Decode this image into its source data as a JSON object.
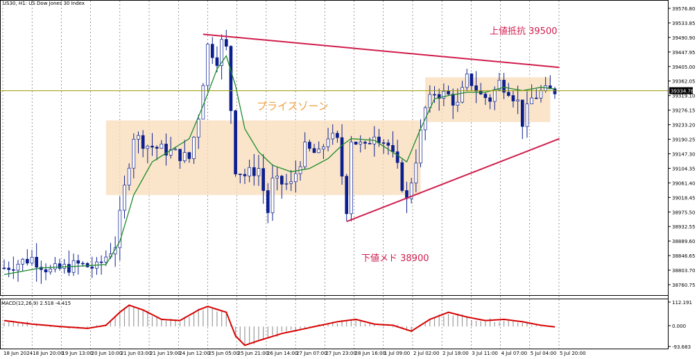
{
  "header": {
    "symbol_title": "US30, H1:  US Dow Jones 30 Index"
  },
  "colors": {
    "candle": "#0b1f8f",
    "ma": "#1e8a2a",
    "trendline": "#d01c4c",
    "zone": "#f8dcb8",
    "current_price_line": "#9a9a00",
    "macd_signal": "#d80000",
    "macd_hist": "#9a9a9a",
    "annotation_resistance": "#d01c4c",
    "annotation_zone": "#f0a040",
    "annotation_support": "#d01c4c"
  },
  "annotations": {
    "resistance": "上値抵抗 39500",
    "zone": "プライスゾーン",
    "support": "下値メド 38900"
  },
  "chart_data": [
    {
      "type": "candlestick",
      "symbol": "US30",
      "timeframe": "H1",
      "ylim": [
        38720,
        39600
      ],
      "yticks": [
        "39576.80",
        "39533.85",
        "39490.90",
        "39447.95",
        "39405.00",
        "39362.05",
        "39319.10",
        "39276.15",
        "39233.20",
        "39190.25",
        "39147.30",
        "39104.35",
        "39061.40",
        "39018.45",
        "38975.50",
        "38932.55",
        "38889.60",
        "38846.65",
        "38803.70",
        "38760.75"
      ],
      "current_price": "39334.78",
      "current_price_value": 39334.78,
      "xticks": [
        "18 Jun 2024",
        "18 Jun 20:00",
        "19 Jun 13:00",
        "20 Jun 10:00",
        "21 Jun 03:00",
        "21 Jun 19:00",
        "24 Jun 12:00",
        "25 Jun 05:00",
        "25 Jun 21:00",
        "26 Jun 14:00",
        "27 Jun 07:00",
        "27 Jun 23:00",
        "28 Jun 16:00",
        "1 Jul 09:00",
        "2 Jul 02:00",
        "2 Jul 18:00",
        "3 Jul 11:00",
        "4 Jul 07:00",
        "5 Jul 04:00",
        "5 Jul 20:00"
      ],
      "n_bars": 120,
      "price_path": [
        [
          0,
          38800
        ],
        [
          6,
          38830
        ],
        [
          10,
          38790
        ],
        [
          16,
          38810
        ],
        [
          20,
          38800
        ],
        [
          24,
          38870
        ],
        [
          26,
          39040
        ],
        [
          28,
          39200
        ],
        [
          31,
          39170
        ],
        [
          36,
          39150
        ],
        [
          40,
          39130
        ],
        [
          42,
          39260
        ],
        [
          44,
          39470
        ],
        [
          46,
          39430
        ],
        [
          47,
          39480
        ],
        [
          48,
          39460
        ],
        [
          50,
          39100
        ],
        [
          52,
          39080
        ],
        [
          55,
          39100
        ],
        [
          57,
          38970
        ],
        [
          58,
          39060
        ],
        [
          62,
          39050
        ],
        [
          65,
          39160
        ],
        [
          68,
          39140
        ],
        [
          70,
          39200
        ],
        [
          72,
          39180
        ],
        [
          74,
          38980
        ],
        [
          75,
          39190
        ],
        [
          78,
          39160
        ],
        [
          80,
          39210
        ],
        [
          83,
          39170
        ],
        [
          85,
          39100
        ],
        [
          87,
          39000
        ],
        [
          89,
          39130
        ],
        [
          91,
          39280
        ],
        [
          93,
          39330
        ],
        [
          96,
          39320
        ],
        [
          98,
          39290
        ],
        [
          100,
          39370
        ],
        [
          101,
          39360
        ],
        [
          103,
          39320
        ],
        [
          105,
          39310
        ],
        [
          107,
          39360
        ],
        [
          109,
          39340
        ],
        [
          111,
          39300
        ],
        [
          112,
          39240
        ],
        [
          114,
          39310
        ],
        [
          116,
          39330
        ],
        [
          119,
          39335
        ]
      ],
      "moving_average": [
        [
          0,
          38780
        ],
        [
          8,
          38800
        ],
        [
          16,
          38805
        ],
        [
          22,
          38810
        ],
        [
          25,
          38880
        ],
        [
          28,
          39020
        ],
        [
          32,
          39120
        ],
        [
          36,
          39155
        ],
        [
          40,
          39190
        ],
        [
          43,
          39290
        ],
        [
          46,
          39400
        ],
        [
          48,
          39440
        ],
        [
          50,
          39350
        ],
        [
          52,
          39220
        ],
        [
          55,
          39150
        ],
        [
          58,
          39110
        ],
        [
          62,
          39090
        ],
        [
          66,
          39100
        ],
        [
          70,
          39130
        ],
        [
          73,
          39170
        ],
        [
          75,
          39190
        ],
        [
          80,
          39185
        ],
        [
          85,
          39140
        ],
        [
          87,
          39120
        ],
        [
          90,
          39220
        ],
        [
          93,
          39310
        ],
        [
          96,
          39320
        ],
        [
          100,
          39330
        ],
        [
          104,
          39330
        ],
        [
          108,
          39345
        ],
        [
          112,
          39335
        ],
        [
          116,
          39345
        ],
        [
          119,
          39340
        ]
      ],
      "zones": [
        {
          "bar_from": 22,
          "bar_to": 90,
          "low": 39020,
          "high": 39245
        },
        {
          "bar_from": 91,
          "bar_to": 118,
          "low": 39240,
          "high": 39375
        }
      ],
      "trendlines": [
        {
          "name": "resistance",
          "from": [
            43,
            39505
          ],
          "to": [
            120,
            39405
          ]
        },
        {
          "name": "support",
          "from": [
            74,
            38940
          ],
          "to": [
            120,
            39190
          ]
        }
      ]
    },
    {
      "type": "histogram+line",
      "indicator_label": "MACD(12,26,9) 2.518 -4.415",
      "ylim": [
        -93.683,
        112.191
      ],
      "yticks": [
        "112.191",
        "0.000",
        "-93.683"
      ],
      "signal_path": [
        [
          0,
          25
        ],
        [
          6,
          10
        ],
        [
          12,
          0
        ],
        [
          18,
          -8
        ],
        [
          22,
          5
        ],
        [
          25,
          60
        ],
        [
          27,
          90
        ],
        [
          30,
          70
        ],
        [
          34,
          30
        ],
        [
          38,
          25
        ],
        [
          42,
          70
        ],
        [
          44,
          85
        ],
        [
          48,
          60
        ],
        [
          50,
          -40
        ],
        [
          52,
          -80
        ],
        [
          55,
          -60
        ],
        [
          60,
          -30
        ],
        [
          66,
          -5
        ],
        [
          72,
          20
        ],
        [
          76,
          30
        ],
        [
          80,
          10
        ],
        [
          84,
          5
        ],
        [
          88,
          -20
        ],
        [
          92,
          30
        ],
        [
          96,
          60
        ],
        [
          100,
          40
        ],
        [
          104,
          25
        ],
        [
          108,
          30
        ],
        [
          112,
          20
        ],
        [
          116,
          5
        ],
        [
          119,
          -2
        ]
      ]
    }
  ]
}
